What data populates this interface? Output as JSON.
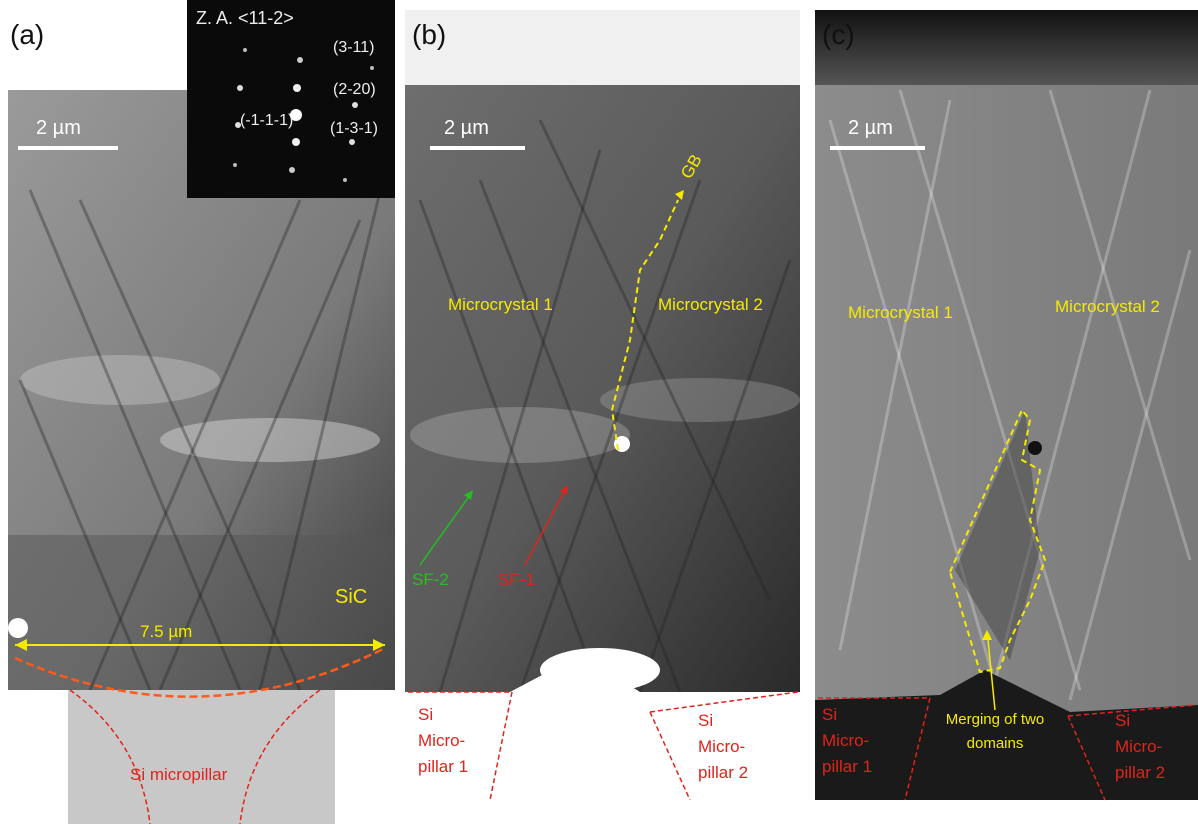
{
  "panels": [
    {
      "label": "(a)",
      "inset_title": "Z. A. <11-2>",
      "spots": [
        "(3-11)",
        "(2-20)",
        "(-1-1-1)",
        "(1-3-1)"
      ],
      "scale_bar": "2 µm",
      "material": "SiC",
      "width_label": "7.5 µm",
      "pillar": "Si micropillar"
    },
    {
      "label": "(b)",
      "scale_bar": "2 µm",
      "boundary": "GB",
      "crystal_1": "Microcrystal 1",
      "crystal_2": "Microcrystal 2",
      "fault_2": "SF-2",
      "fault_1": "SF-1",
      "pillar_1": [
        "Si",
        "Micro-",
        "pillar 1"
      ],
      "pillar_2": [
        "Si",
        "Micro-",
        "pillar 2"
      ]
    },
    {
      "label": "(c)",
      "scale_bar": "2 µm",
      "crystal_1": "Microcrystal 1",
      "crystal_2": "Microcrystal 2",
      "merge": [
        "Merging of two",
        "domains"
      ],
      "pillar_1": [
        "Si",
        "Micro-",
        "pillar 1"
      ],
      "pillar_2": [
        "Si",
        "Micro-",
        "pillar 2"
      ]
    }
  ]
}
